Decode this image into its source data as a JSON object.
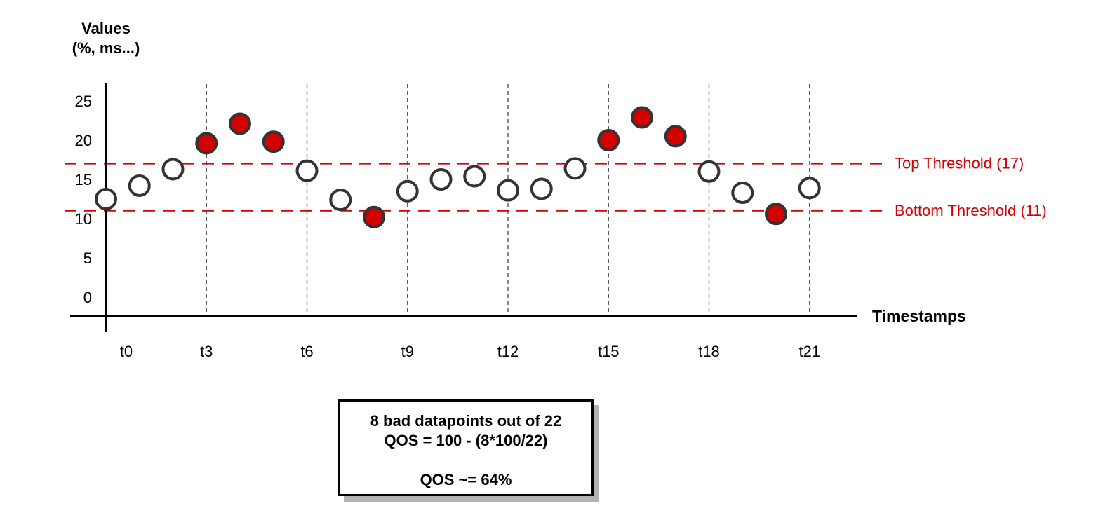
{
  "chart_data": {
    "type": "scatter",
    "y_title_line1": "Values",
    "y_title_line2": "(%, ms...)",
    "x_title": "Timestamps",
    "ylim": [
      0,
      25
    ],
    "y_ticks": [
      0,
      5,
      10,
      15,
      20,
      25
    ],
    "x_tick_labels": [
      "t0",
      "t3",
      "t6",
      "t9",
      "t12",
      "t15",
      "t18",
      "t21"
    ],
    "x_tick_positions": [
      0,
      3,
      6,
      9,
      12,
      15,
      18,
      21
    ],
    "grid_x": true,
    "thresholds": [
      {
        "label": "Top Threshold (17)",
        "value": 17
      },
      {
        "label": "Bottom Threshold (11)",
        "value": 11
      }
    ],
    "points": [
      {
        "x": 0,
        "y": 12.5,
        "bad": false
      },
      {
        "x": 1,
        "y": 14.2,
        "bad": false
      },
      {
        "x": 2,
        "y": 16.3,
        "bad": false
      },
      {
        "x": 3,
        "y": 19.6,
        "bad": true
      },
      {
        "x": 4,
        "y": 22.1,
        "bad": true
      },
      {
        "x": 5,
        "y": 19.8,
        "bad": true
      },
      {
        "x": 6,
        "y": 16.1,
        "bad": false
      },
      {
        "x": 7,
        "y": 12.4,
        "bad": false
      },
      {
        "x": 8,
        "y": 10.2,
        "bad": true
      },
      {
        "x": 9,
        "y": 13.5,
        "bad": false
      },
      {
        "x": 10,
        "y": 15.0,
        "bad": false
      },
      {
        "x": 11,
        "y": 15.4,
        "bad": false
      },
      {
        "x": 12,
        "y": 13.6,
        "bad": false
      },
      {
        "x": 13,
        "y": 13.8,
        "bad": false
      },
      {
        "x": 14,
        "y": 16.4,
        "bad": false
      },
      {
        "x": 15,
        "y": 20.0,
        "bad": true
      },
      {
        "x": 16,
        "y": 22.9,
        "bad": true
      },
      {
        "x": 17,
        "y": 20.5,
        "bad": true
      },
      {
        "x": 18,
        "y": 16.0,
        "bad": false
      },
      {
        "x": 19,
        "y": 13.3,
        "bad": false
      },
      {
        "x": 20,
        "y": 10.6,
        "bad": true
      },
      {
        "x": 21,
        "y": 13.9,
        "bad": false
      }
    ],
    "colors": {
      "bad_fill": "#d40000",
      "good_fill": "#ffffff",
      "marker_stroke": "#333333",
      "threshold": "#d40000",
      "grid": "#555555",
      "axis": "#000000"
    }
  },
  "summary": {
    "line1": "8 bad datapoints out of 22",
    "line2": "QOS = 100 - (8*100/22)",
    "line3": "QOS ~= 64%"
  }
}
